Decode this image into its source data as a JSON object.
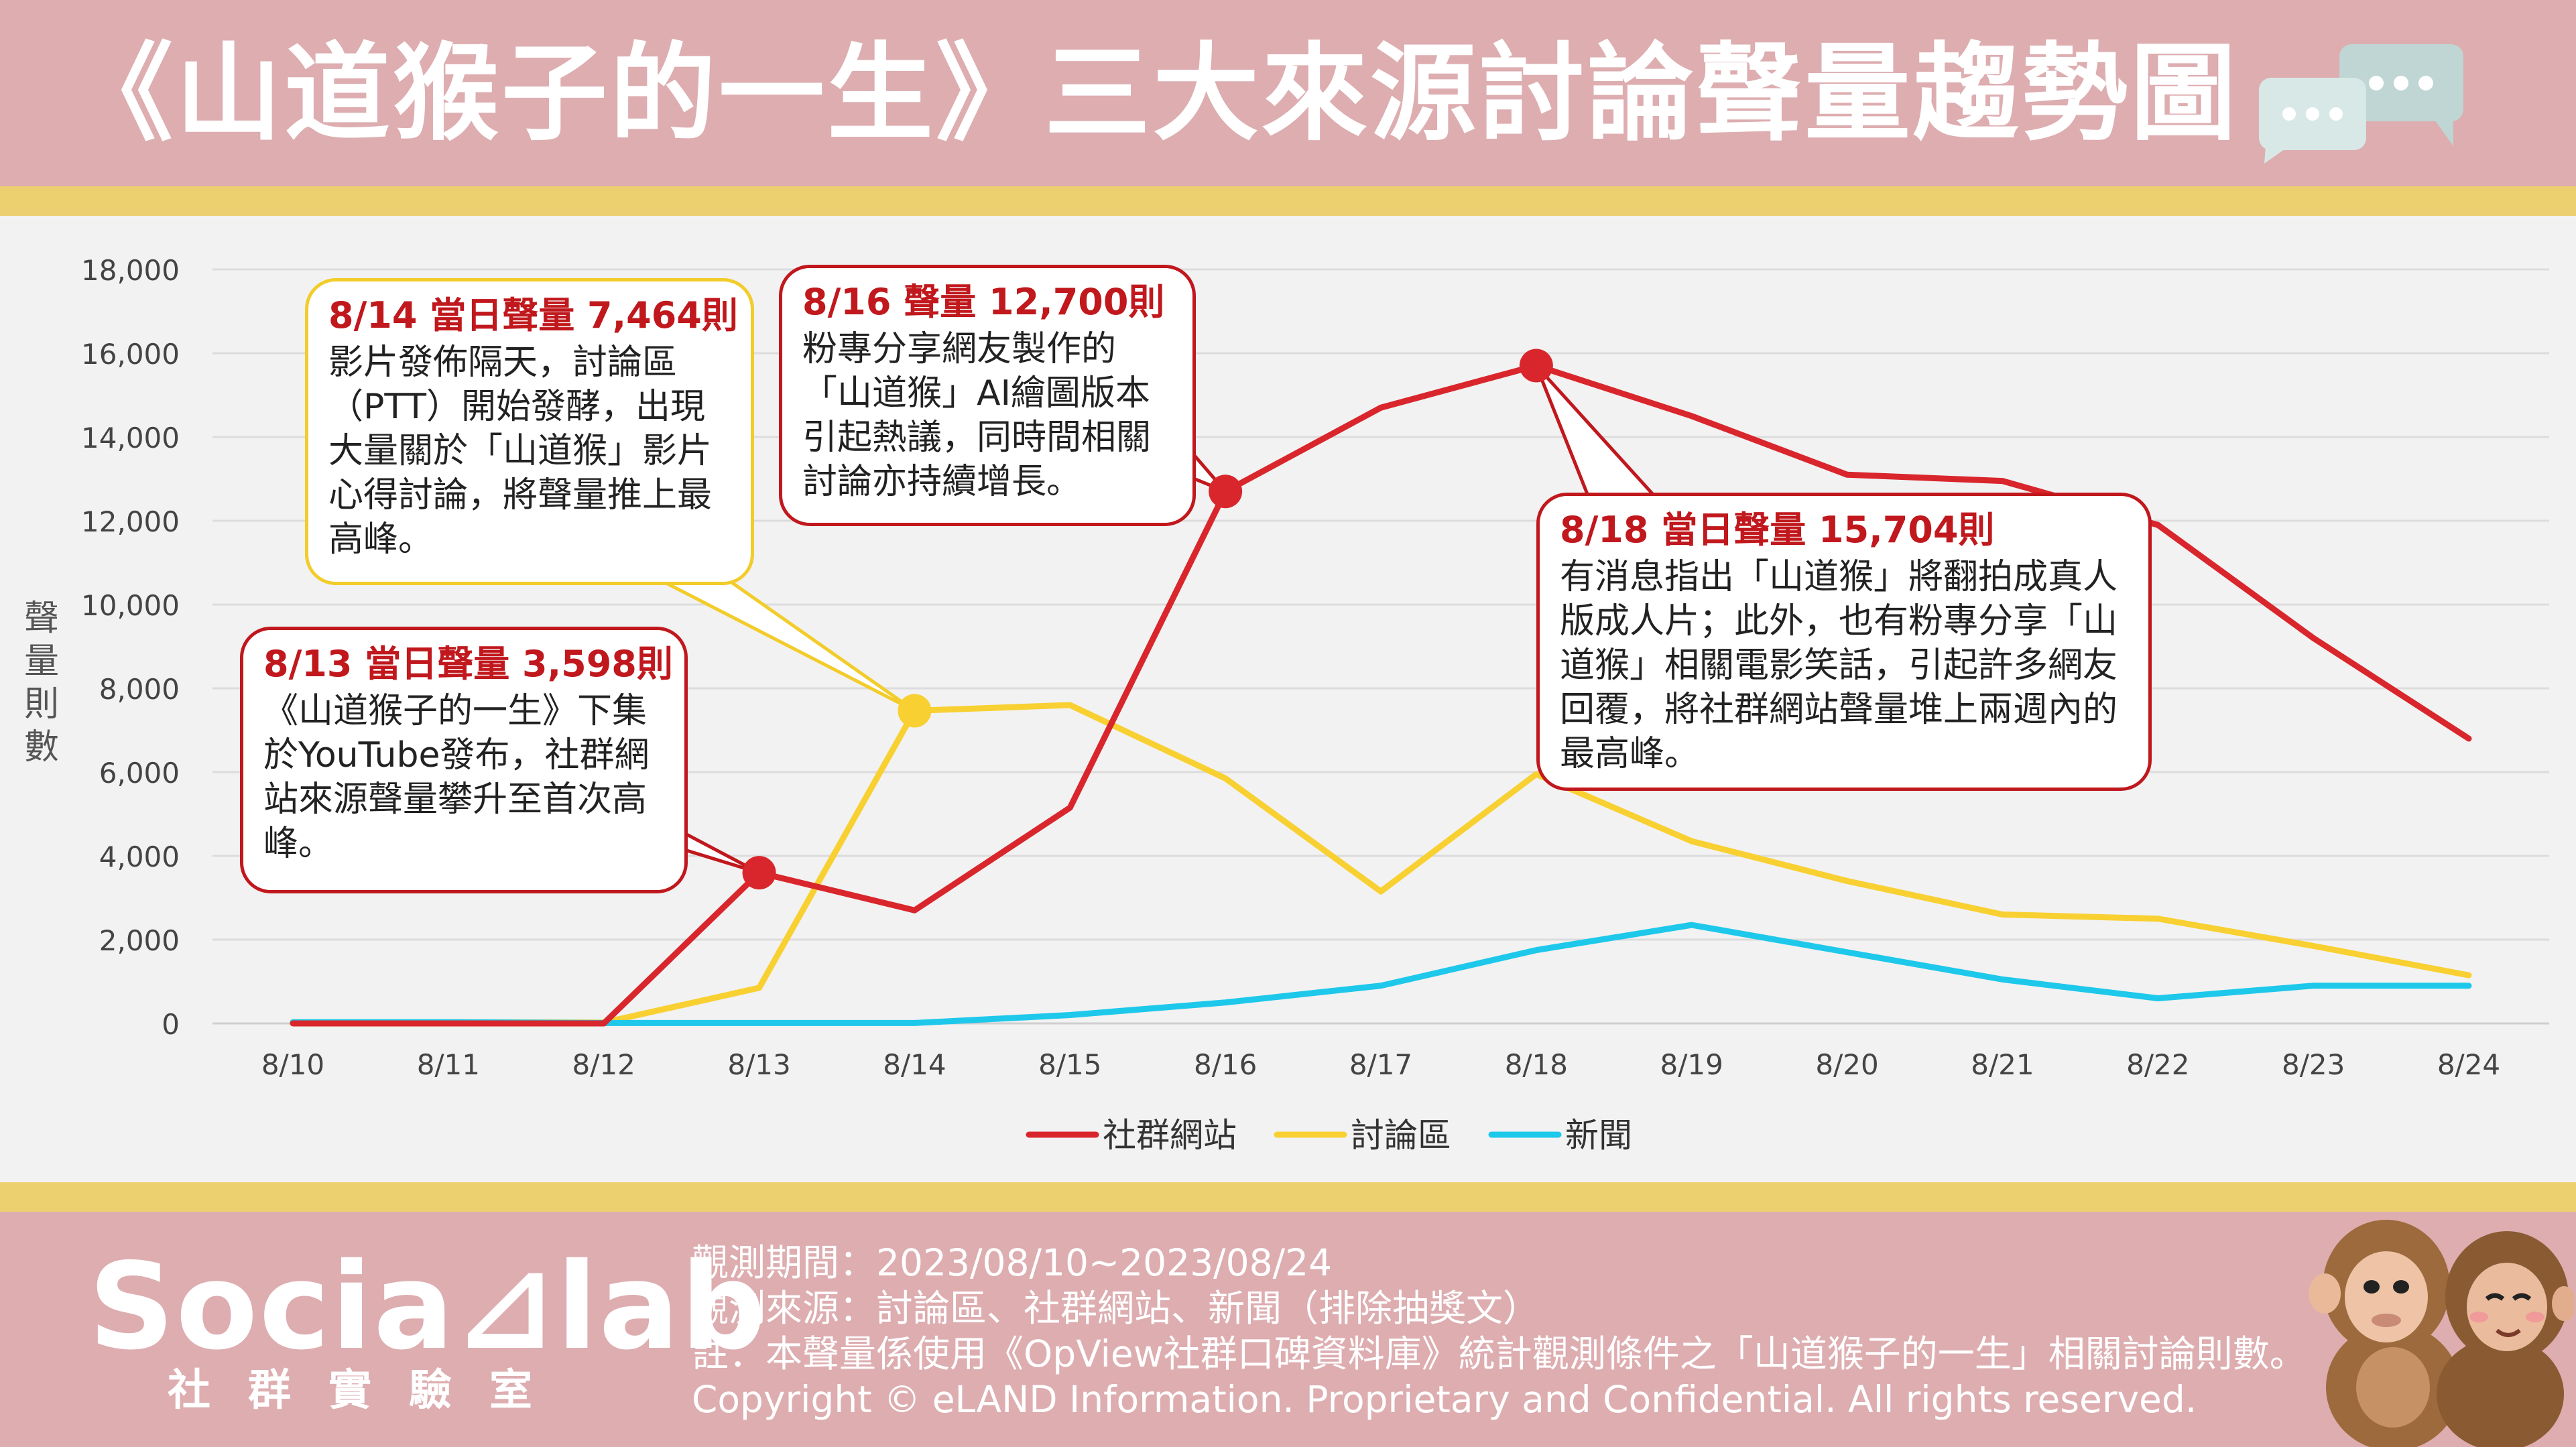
{
  "header": {
    "title": "《山道猴子的一生》三大來源討論聲量趨勢圖"
  },
  "icons": {
    "chat": "speech-bubbles-icon",
    "monkeys": "monkeys-illustration"
  },
  "colors": {
    "social": "#d9262c",
    "forum": "#f8d031",
    "news": "#1ec8ea",
    "header_bg": "#ddadb0",
    "band": "#ecd06f"
  },
  "chart_data": {
    "type": "line",
    "categories": [
      "8/10",
      "8/11",
      "8/12",
      "8/13",
      "8/14",
      "8/15",
      "8/16",
      "8/17",
      "8/18",
      "8/19",
      "8/20",
      "8/21",
      "8/22",
      "8/23",
      "8/24"
    ],
    "series": [
      {
        "name": "社群網站",
        "color": "#d9262c",
        "values": [
          0,
          0,
          0,
          3598,
          2700,
          5150,
          12700,
          14700,
          15704,
          14500,
          13100,
          12950,
          11900,
          9200,
          6800
        ]
      },
      {
        "name": "討論區",
        "color": "#f8d031",
        "values": [
          30,
          30,
          20,
          850,
          7464,
          7600,
          5850,
          3150,
          5950,
          4350,
          3400,
          2600,
          2500,
          1850,
          1150
        ]
      },
      {
        "name": "新聞",
        "color": "#1ec8ea",
        "values": [
          30,
          30,
          10,
          10,
          10,
          200,
          500,
          900,
          1750,
          2350,
          1700,
          1050,
          600,
          900,
          900
        ]
      }
    ],
    "highlights": [
      {
        "series": 0,
        "index": 3
      },
      {
        "series": 1,
        "index": 4
      },
      {
        "series": 0,
        "index": 6
      },
      {
        "series": 0,
        "index": 8
      }
    ],
    "ylabel": "聲量則數",
    "ylim": [
      0,
      18000
    ],
    "yticks": [
      "0",
      "2,000",
      "4,000",
      "6,000",
      "8,000",
      "10,000",
      "12,000",
      "14,000",
      "16,000",
      "18,000"
    ],
    "grid": true,
    "legend": "bottom"
  },
  "callouts": [
    {
      "title": "8/14 當日聲量 7,464則",
      "body": "影片發佈隔天，討論區（PTT）開始發酵，出現大量關於「山道猴」影片心得討論，將聲量推上最高峰。"
    },
    {
      "title": "8/13 當日聲量 3,598則",
      "body": "《山道猴子的一生》下集於YouTube發布，社群網站來源聲量攀升至首次高峰。"
    },
    {
      "title": "8/16 聲量 12,700則",
      "body": "粉專分享網友製作的「山道猴」AI繪圖版本引起熱議，同時間相關討論亦持續增長。"
    },
    {
      "title": "8/18 當日聲量 15,704則",
      "body": "有消息指出「山道猴」將翻拍成真人版成人片；此外，也有粉專分享「山道猴」相關電影笑話，引起許多網友回覆，將社群網站聲量堆上兩週內的最高峰。"
    }
  ],
  "footer": {
    "logo": "Socia⊿lab",
    "logo_sub": "社群實驗室",
    "period": "觀測期間：2023/08/10~2023/08/24",
    "sources": "觀測來源：討論區、社群網站、新聞（排除抽獎文）",
    "note": "註：本聲量係使用《OpView社群口碑資料庫》統計觀測條件之「山道猴子的一生」相關討論則數。",
    "copyright": "Copyright © eLAND Information. Proprietary and Confidential. All rights reserved."
  }
}
